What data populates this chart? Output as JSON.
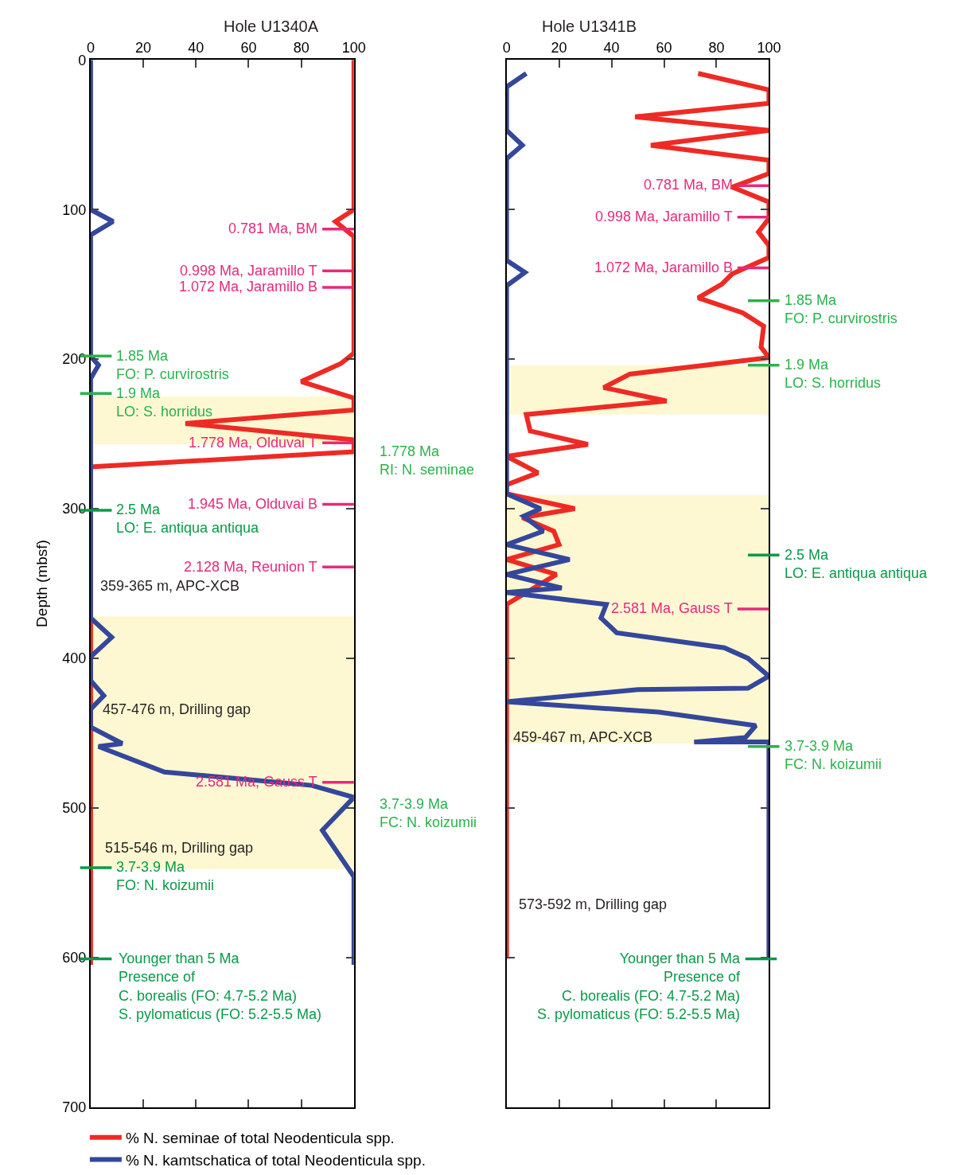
{
  "chart_data": [
    {
      "type": "line",
      "title": "Hole U1340A",
      "ylabel": "Depth (mbsf)",
      "xlim": [
        0,
        100
      ],
      "xticks": [
        0,
        20,
        40,
        60,
        80,
        100
      ],
      "ylim": [
        700,
        0
      ],
      "yticks": [
        0,
        100,
        200,
        300,
        400,
        500,
        600,
        700
      ],
      "grid": false,
      "marker": "none",
      "line_style": "solid",
      "legend": "bottom",
      "series": [
        {
          "name": "% N. seminae of total Neodenticula spp.",
          "color": "#ee2a24",
          "x": [
            100,
            100,
            93,
            100,
            100,
            95,
            80,
            100,
            100,
            36,
            100,
            100,
            0,
            0
          ],
          "values": [
            0,
            100,
            108,
            118,
            196,
            203,
            215,
            226,
            234,
            243,
            254,
            262,
            272,
            605
          ]
        },
        {
          "name": "% N. kamtschatica of total Neodenticula spp.",
          "color": "#34479b",
          "x": [
            0,
            0,
            8.5,
            0,
            0,
            3,
            0,
            0,
            8,
            0,
            0,
            5,
            0,
            0,
            12,
            3,
            28,
            84,
            100,
            88,
            100,
            100
          ],
          "values": [
            0,
            100,
            108,
            117,
            198,
            204,
            213,
            373,
            386,
            399,
            415,
            425,
            434,
            446,
            457,
            459,
            476,
            485,
            493,
            515,
            546,
            605
          ]
        }
      ],
      "bands": [
        {
          "axis": "y",
          "from": 225,
          "to": 257,
          "color": "#fdf8d2"
        },
        {
          "axis": "y",
          "from": 372,
          "to": 541,
          "color": "#fdf8d2"
        }
      ],
      "ref_lines": [
        {
          "axis": "y",
          "value": 113,
          "label": "0.781 Ma, BM",
          "color": "#e8297a"
        },
        {
          "axis": "y",
          "value": 141,
          "label": "0.998 Ma, Jaramillo T",
          "color": "#e8297a"
        },
        {
          "axis": "y",
          "value": 152,
          "label": "1.072 Ma, Jaramillo B",
          "color": "#e8297a"
        },
        {
          "axis": "y",
          "value": 256,
          "label": "1.778 Ma, Olduvai T",
          "color": "#e8297a"
        },
        {
          "axis": "y",
          "value": 297,
          "label": "1.945 Ma, Olduvai B",
          "color": "#e8297a"
        },
        {
          "axis": "y",
          "value": 339,
          "label": "2.128 Ma, Reunion T",
          "color": "#e8297a"
        },
        {
          "axis": "y",
          "value": 483,
          "label": "2.581 Ma, Gauss T",
          "color": "#e8297a"
        },
        {
          "axis": "y",
          "value": 198,
          "label": "1.85 Ma\nFO: P. curvirostris",
          "color": "#2bb24c"
        },
        {
          "axis": "y",
          "value": 223,
          "label": "1.9 Ma\nLO: S. horridus",
          "color": "#2bb24c"
        },
        {
          "axis": "y",
          "value": 301,
          "label": "2.5 Ma\nLO: E. antiqua antiqua",
          "color": "#0a9a48"
        },
        {
          "axis": "y",
          "value": 540,
          "label": "3.7-3.9 Ma\nFO: N. koizumii",
          "color": "#0a9a48"
        },
        {
          "axis": "y",
          "value": 601,
          "color": "#0a9a48"
        }
      ],
      "annotations": [
        "Younger than 5 Ma\nPresence of\nC. borealis (FO: 4.7-5.2 Ma)\nS. pylomaticus (FO: 5.2-5.5 Ma)",
        "359-365 m, APC-XCB",
        "457-476 m, Drilling gap",
        "515-546 m, Drilling gap",
        "1.778 Ma\nRI: N. seminae",
        "3.7-3.9 Ma\nFC: N. koizumii"
      ]
    },
    {
      "type": "line",
      "title": "Hole U1341B",
      "xlim": [
        0,
        100
      ],
      "xticks": [
        0,
        20,
        40,
        60,
        80,
        100
      ],
      "ylim": [
        700,
        0
      ],
      "yticks": [
        0,
        100,
        200,
        300,
        400,
        500,
        600,
        700
      ],
      "tick_labels": "x",
      "grid": false,
      "marker": "none",
      "line_style": "solid",
      "series": [
        {
          "color": "#ee2a24",
          "x": [
            73,
            100,
            100,
            49,
            100,
            55,
            100,
            100,
            86,
            100,
            100,
            96,
            100,
            100,
            86,
            82,
            73,
            90,
            98,
            97,
            100,
            47,
            37,
            61,
            7.5,
            9,
            31,
            0,
            12,
            0,
            0,
            26,
            6,
            18,
            20,
            0,
            19,
            0,
            0
          ],
          "values": [
            9,
            20,
            29,
            38,
            47,
            57,
            67,
            76,
            85,
            95,
            106,
            115,
            124,
            132,
            143,
            150,
            159,
            169,
            178,
            192,
            199,
            210,
            219,
            228,
            237,
            248,
            257,
            265,
            276,
            284,
            290,
            300,
            306,
            315,
            324,
            334,
            344,
            364,
            600
          ]
        },
        {
          "color": "#34479b",
          "x": [
            7.5,
            0,
            0,
            6,
            0,
            0,
            7,
            0,
            0,
            13,
            6.5,
            14,
            0,
            24,
            0,
            21,
            0,
            38,
            36,
            42,
            83,
            92,
            100,
            92,
            50,
            0,
            58,
            95,
            91,
            71.5,
            100,
            100
          ],
          "values": [
            9,
            18,
            47,
            57,
            66,
            134,
            142,
            151,
            290,
            300,
            305,
            315,
            324,
            334,
            344,
            353,
            356,
            364,
            373,
            383,
            393,
            400,
            412,
            420,
            421,
            429,
            436,
            445,
            453,
            456,
            456,
            600
          ]
        }
      ],
      "bands": [
        {
          "axis": "y",
          "from": 204,
          "to": 237,
          "color": "#fdf8d2"
        },
        {
          "axis": "y",
          "from": 291,
          "to": 457,
          "color": "#fdf8d2"
        }
      ],
      "ref_lines": [
        {
          "axis": "y",
          "value": 84,
          "label": "0.781 Ma, BM",
          "color": "#e8297a"
        },
        {
          "axis": "y",
          "value": 105,
          "label": "0.998 Ma, Jaramillo T",
          "color": "#e8297a"
        },
        {
          "axis": "y",
          "value": 139,
          "label": "1.072 Ma, Jaramillo B",
          "color": "#e8297a"
        },
        {
          "axis": "y",
          "value": 367,
          "label": "2.581 Ma, Gauss T",
          "color": "#e8297a"
        },
        {
          "axis": "y",
          "value": 161,
          "label": "1.85 Ma\nFO: P. curvirostris",
          "color": "#2bb24c"
        },
        {
          "axis": "y",
          "value": 204,
          "label": "1.9 Ma\nLO: S. horridus",
          "color": "#2bb24c"
        },
        {
          "axis": "y",
          "value": 331,
          "label": "2.5 Ma\nLO: E. antiqua antiqua",
          "color": "#0a9a48"
        },
        {
          "axis": "y",
          "value": 459,
          "label": "3.7-3.9 Ma\nFC: N. koizumii",
          "color": "#2bb24c"
        },
        {
          "axis": "y",
          "value": 601,
          "color": "#0a9a48"
        }
      ],
      "annotations": [
        "Younger than 5 Ma\nPresence of\nC. borealis (FO: 4.7-5.2 Ma)\nS. pylomaticus (FO: 5.2-5.5 Ma)",
        "459-467 m, APC-XCB",
        "573-592 m, Drilling gap"
      ]
    }
  ]
}
